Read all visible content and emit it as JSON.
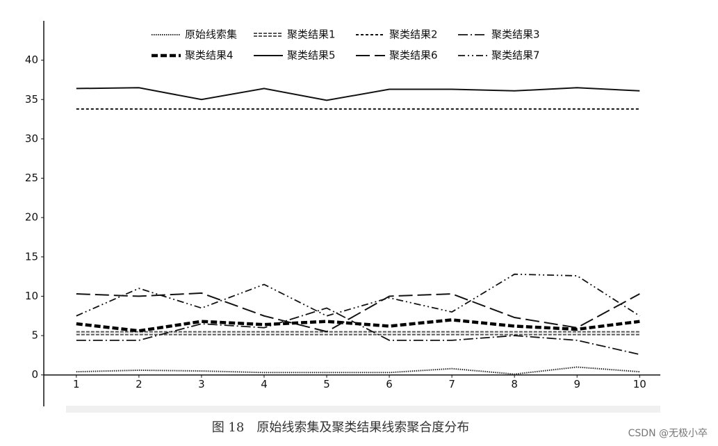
{
  "chart_data": {
    "type": "line",
    "caption": "图 18　原始线索集及聚类结果线索聚合度分布",
    "watermark": "CSDN @无极小卒",
    "x": [
      1,
      2,
      3,
      4,
      5,
      6,
      7,
      8,
      9,
      10
    ],
    "xlim": [
      0.48,
      10.33
    ],
    "xticks": [
      1,
      2,
      3,
      4,
      5,
      6,
      7,
      8,
      9,
      10
    ],
    "ylim": [
      -4,
      45
    ],
    "yticks": [
      0,
      5,
      10,
      15,
      20,
      25,
      30,
      35,
      40
    ],
    "grid": false,
    "series": [
      {
        "name": "原始线索集",
        "color": "#222222",
        "values": [
          0.4,
          0.6,
          0.5,
          0.3,
          0.3,
          0.3,
          0.8,
          0.1,
          1.0,
          0.4
        ]
      },
      {
        "name": "聚类结果1",
        "color": "#555555",
        "values": [
          5.3,
          5.3,
          5.3,
          5.3,
          5.3,
          5.3,
          5.3,
          5.3,
          5.3,
          5.3
        ]
      },
      {
        "name": "聚类结果2",
        "color": "#111111",
        "values": [
          33.8,
          33.8,
          33.8,
          33.8,
          33.8,
          33.8,
          33.8,
          33.8,
          33.8,
          33.8
        ]
      },
      {
        "name": "聚类结果3",
        "color": "#111111",
        "values": [
          4.4,
          4.4,
          6.5,
          6.0,
          8.5,
          4.4,
          4.4,
          5.0,
          4.4,
          2.6
        ]
      },
      {
        "name": "聚类结果4",
        "color": "#000000",
        "values": [
          6.5,
          5.6,
          6.8,
          6.4,
          6.8,
          6.2,
          7.0,
          6.2,
          5.8,
          6.8
        ]
      },
      {
        "name": "聚类结果5",
        "color": "#111111",
        "values": [
          36.4,
          36.5,
          35.0,
          36.4,
          34.9,
          36.3,
          36.3,
          36.1,
          36.5,
          36.1
        ]
      },
      {
        "name": "聚类结果6",
        "color": "#111111",
        "values": [
          10.3,
          10.0,
          10.4,
          7.5,
          5.5,
          10.0,
          10.3,
          7.3,
          6.0,
          10.3
        ]
      },
      {
        "name": "聚类结果7",
        "color": "#111111",
        "values": [
          7.5,
          11.0,
          8.5,
          11.5,
          7.5,
          9.8,
          8.0,
          12.8,
          12.6,
          7.5
        ]
      }
    ]
  }
}
